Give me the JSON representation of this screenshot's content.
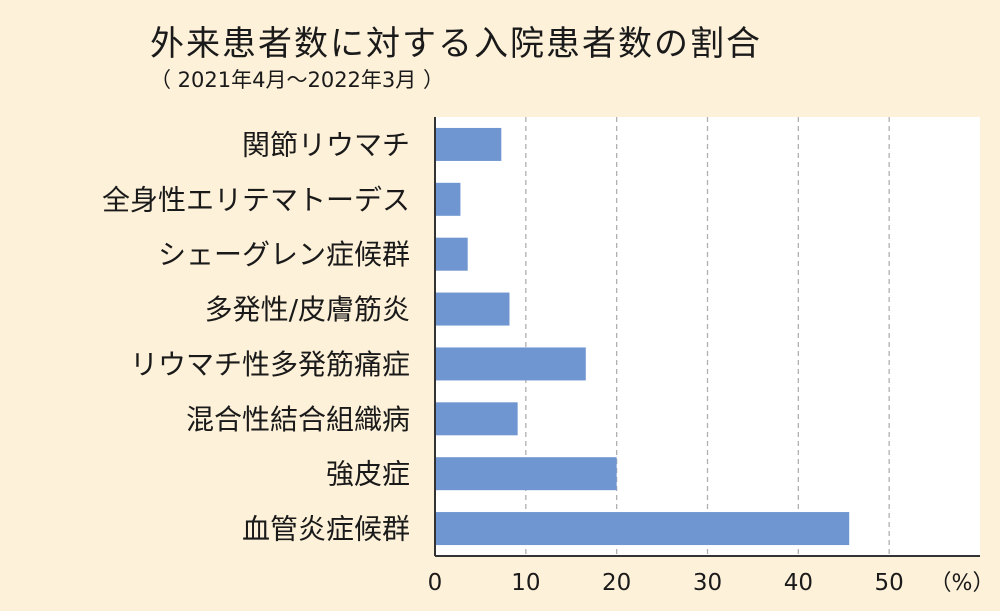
{
  "chart_data": {
    "type": "bar",
    "orientation": "horizontal",
    "title": "外来患者数に対する入院患者数の割合",
    "subtitle": "（ 2021年4月～2022年3月 ）",
    "categories": [
      "関節リウマチ",
      "全身性エリテマトーデス",
      "シェーグレン症候群",
      "多発性/皮膚筋炎",
      "リウマチ性多発筋痛症",
      "混合性結合組織病",
      "強皮症",
      "血管炎症候群"
    ],
    "values": [
      7.3,
      2.8,
      3.6,
      8.2,
      16.6,
      9.1,
      20.0,
      45.6
    ],
    "xlim": [
      0,
      60
    ],
    "xticks": [
      "0",
      "10",
      "20",
      "30",
      "40",
      "50"
    ],
    "xticks_values": [
      0,
      10,
      20,
      30,
      40,
      50
    ],
    "unit_label": "（%）",
    "grid": "vertical dashed",
    "colors": {
      "background": "#FDF1D9",
      "plot_background": "#FFFFFF",
      "bar": "#7096D1",
      "grid": "#B0B0B0",
      "axis": "#333333"
    }
  }
}
